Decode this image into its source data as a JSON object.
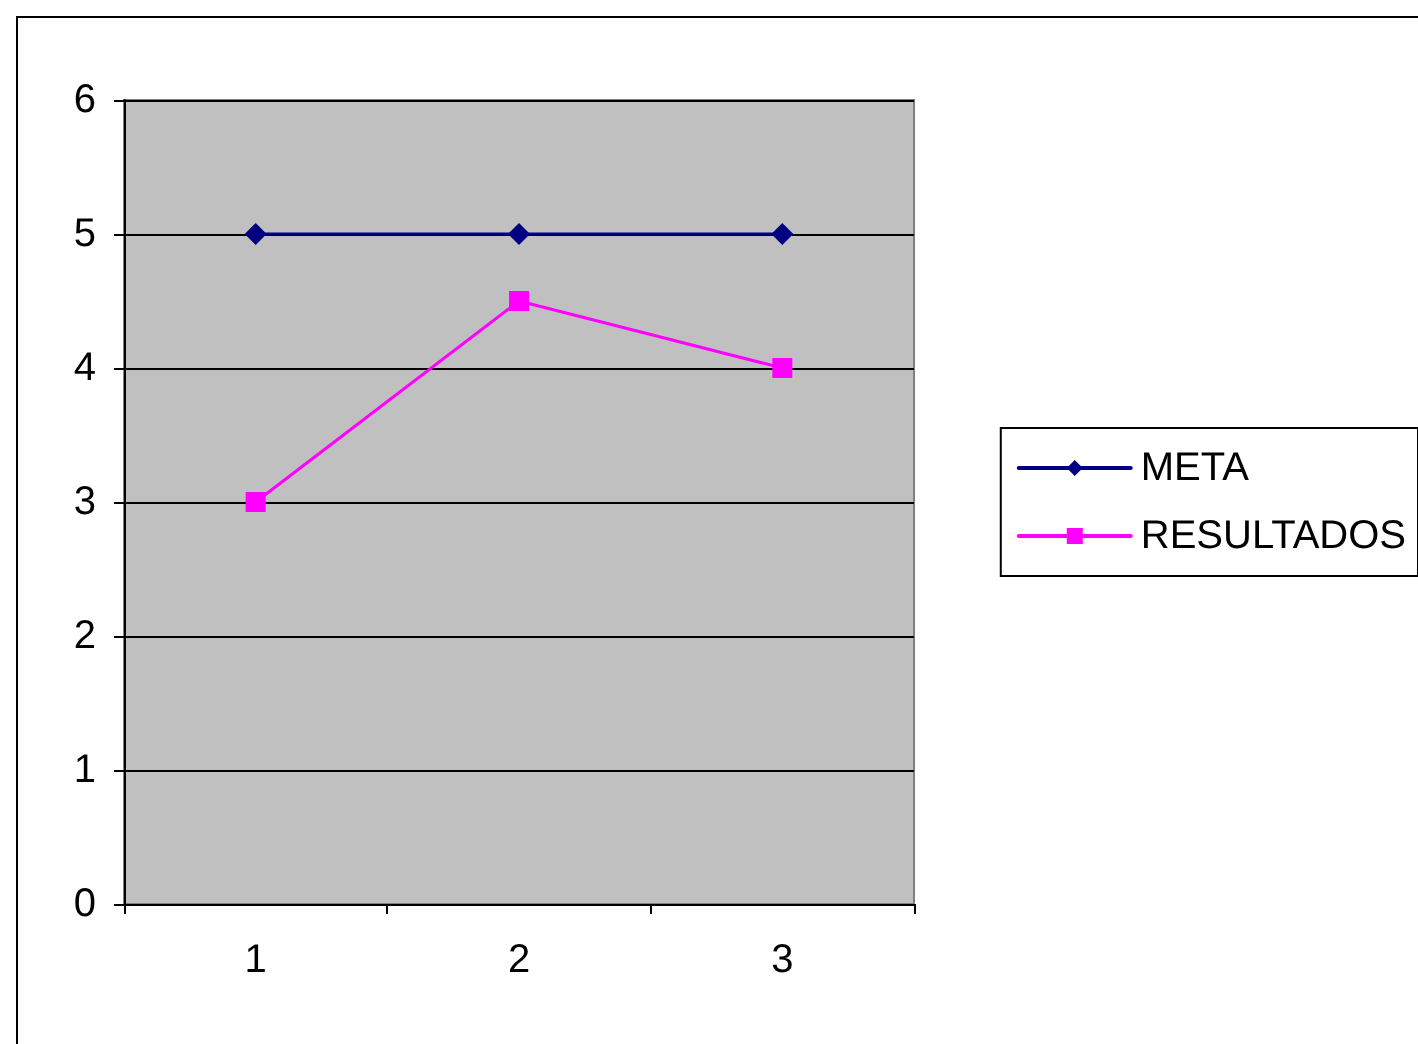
{
  "chart_data": {
    "type": "line",
    "categories": [
      "1",
      "2",
      "3"
    ],
    "series": [
      {
        "name": "META",
        "color": "#000080",
        "marker": "diamond",
        "values": [
          5,
          5,
          5
        ]
      },
      {
        "name": "RESULTADOS",
        "color": "#ff00ff",
        "marker": "square",
        "values": [
          3,
          4.5,
          4
        ]
      }
    ],
    "ylim": [
      0,
      6
    ],
    "yticks": [
      0,
      1,
      2,
      3,
      4,
      5,
      6
    ],
    "grid": "y",
    "legend": "right",
    "line_style": "solid"
  }
}
